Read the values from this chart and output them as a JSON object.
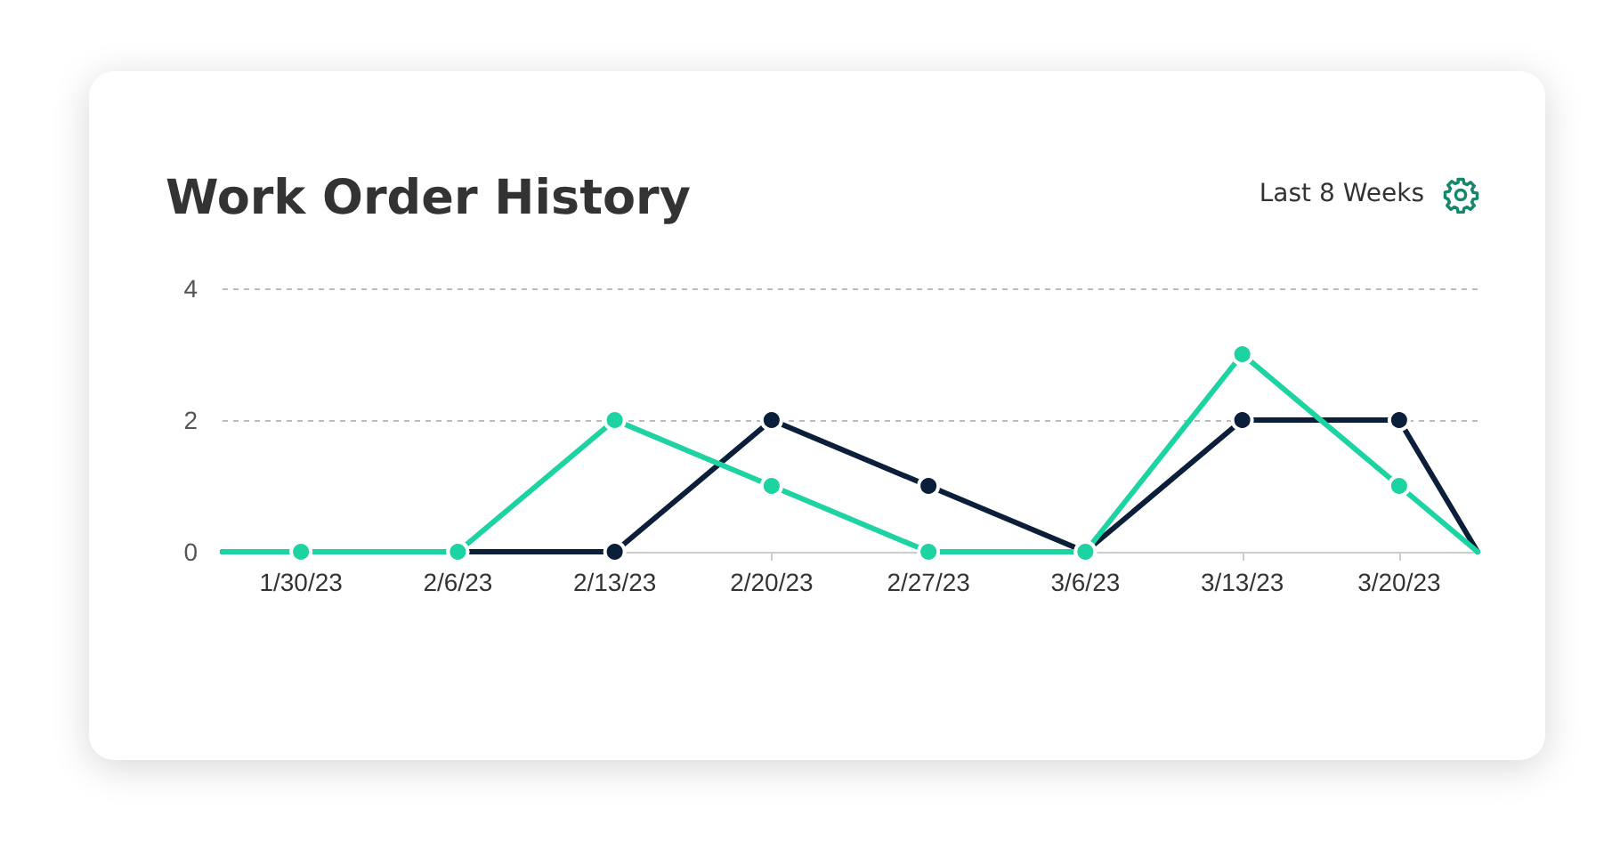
{
  "chart_data": {
    "type": "line",
    "title": "Work Order History",
    "annotations": [
      "Last 8 Weeks"
    ],
    "x": [
      "--01-26T12:00",
      "--01-30",
      "--02-06",
      "--02-13",
      "--02-20",
      "--02-27",
      "--03-06",
      "--03-13",
      "--03-20",
      "--03-23T12:00"
    ],
    "xlim": [
      "--01-26T12:00",
      "--03-23T12:00"
    ],
    "xticks": [
      {
        "value": "--01-30",
        "label": "1/30/23"
      },
      {
        "value": "--02-06",
        "label": "2/6/23"
      },
      {
        "value": "--02-13",
        "label": "2/13/23"
      },
      {
        "value": "--02-20",
        "label": "2/20/23"
      },
      {
        "value": "--02-27",
        "label": "2/27/23"
      },
      {
        "value": "--03-06",
        "label": "3/6/23"
      },
      {
        "value": "--03-13",
        "label": "3/13/23"
      },
      {
        "value": "--03-20",
        "label": "3/20/23"
      }
    ],
    "series": [
      {
        "color": "#0b1f3a",
        "values": [
          0,
          0,
          0,
          0,
          2,
          1,
          0,
          2,
          2,
          0
        ]
      },
      {
        "color": "#1dd3a2",
        "values": [
          0,
          0,
          0,
          2,
          1,
          0,
          0,
          3,
          1,
          0
        ]
      }
    ],
    "ylim": [
      0,
      4
    ],
    "yticks": [
      0,
      2,
      4
    ],
    "grid": "y",
    "marker": "circle",
    "line_style": "solid"
  }
}
